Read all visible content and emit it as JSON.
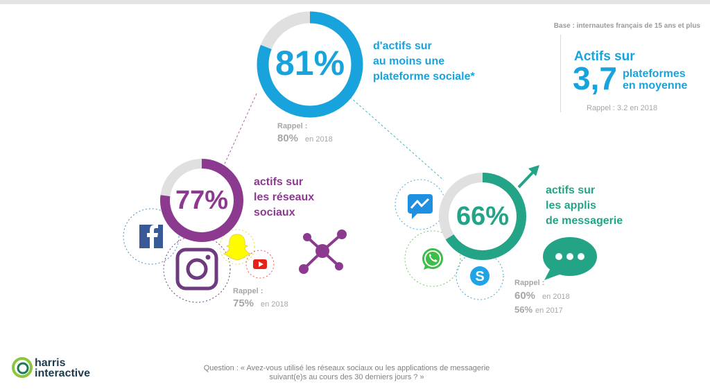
{
  "header": {
    "base": "Base : internautes français de 15 ans et plus"
  },
  "average": {
    "title": "Actifs sur",
    "value": "3,7",
    "unit_line1": "plateformes",
    "unit_line2": "en moyenne",
    "rappel": "Rappel : 3.2 en  2018"
  },
  "chart_data": {
    "type": "pie",
    "series": [
      {
        "value": 81,
        "percent_label": "81%",
        "description": [
          "d'actifs sur",
          "au moins une",
          "plateforme sociale*"
        ],
        "color": "#19a3dd"
      },
      {
        "value": 77,
        "percent_label": "77%",
        "description": [
          "actifs sur",
          "les réseaux",
          "sociaux"
        ],
        "color": "#8b3a8f"
      },
      {
        "value": 66,
        "percent_label": "66%",
        "description": [
          "actifs sur",
          "les applis",
          "de messagerie"
        ],
        "color": "#23a487"
      }
    ],
    "track_color": "#e0e0e0"
  },
  "recall": {
    "label": "Rappel :",
    "overall": {
      "value": "80%",
      "year": "en 2018"
    },
    "social": {
      "value": "75%",
      "year": "en 2018"
    },
    "messaging": [
      {
        "value": "60%",
        "year": "en 2018"
      },
      {
        "value": "56%",
        "year": "en 2017"
      }
    ]
  },
  "icons": [
    "facebook-icon",
    "instagram-icon",
    "snapchat-icon",
    "youtube-icon",
    "network-icon",
    "messenger-icon",
    "whatsapp-icon",
    "skype-icon",
    "chat-bubble-icon",
    "trend-up-arrow-icon"
  ],
  "footer": {
    "question_line1": "Question : « Avez-vous utilisé les réseaux sociaux ou les applications de messagerie",
    "question_line2": "suivant(e)s au cours des 30 derniers jours ? »",
    "logo_line1": "harris",
    "logo_line2": "interactive"
  }
}
